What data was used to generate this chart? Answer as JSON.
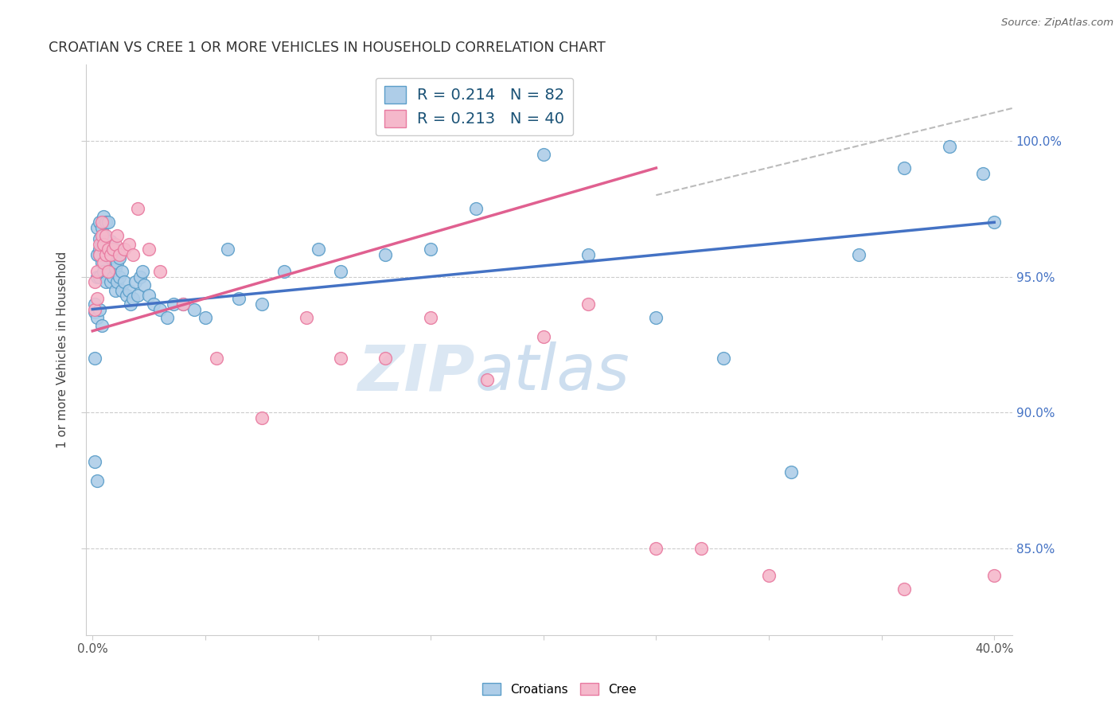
{
  "title": "CROATIAN VS CREE 1 OR MORE VEHICLES IN HOUSEHOLD CORRELATION CHART",
  "source": "Source: ZipAtlas.com",
  "ylabel": "1 or more Vehicles in Household",
  "color_croatian_face": "#aecde8",
  "color_croatian_edge": "#5b9ec9",
  "color_cree_face": "#f5b8cb",
  "color_cree_edge": "#e87aa0",
  "color_line_blue": "#4472c4",
  "color_line_pink": "#e06090",
  "color_dash": "#bbbbbb",
  "color_grid": "#cccccc",
  "color_ytick": "#4472c4",
  "xlim": [
    -0.003,
    0.408
  ],
  "ylim": [
    0.818,
    1.028
  ],
  "y_tick_positions": [
    0.85,
    0.9,
    0.95,
    1.0
  ],
  "y_tick_labels": [
    "85.0%",
    "90.0%",
    "95.0%",
    "100.0%"
  ],
  "x_tick_positions": [
    0.0,
    0.05,
    0.1,
    0.15,
    0.2,
    0.25,
    0.3,
    0.35,
    0.4
  ],
  "x_tick_labels": [
    "0.0%",
    "",
    "",
    "",
    "",
    "",
    "",
    "",
    "40.0%"
  ],
  "legend_line1": "R = 0.214   N = 82",
  "legend_line2": "R = 0.213   N = 40",
  "legend_label1": "Croatians",
  "legend_label2": "Cree",
  "blue_line_x0": 0.0,
  "blue_line_y0": 0.938,
  "blue_line_x1": 0.4,
  "blue_line_y1": 0.97,
  "pink_line_x0": 0.0,
  "pink_line_y0": 0.93,
  "pink_line_x1": 0.25,
  "pink_line_y1": 0.99,
  "dash_line_x0": 0.25,
  "dash_line_y0": 0.98,
  "dash_line_x1": 0.408,
  "dash_line_y1": 1.012,
  "croatian_x": [
    0.001,
    0.001,
    0.002,
    0.002,
    0.002,
    0.003,
    0.003,
    0.003,
    0.003,
    0.003,
    0.004,
    0.004,
    0.004,
    0.005,
    0.005,
    0.005,
    0.005,
    0.006,
    0.006,
    0.006,
    0.006,
    0.007,
    0.007,
    0.007,
    0.007,
    0.008,
    0.008,
    0.008,
    0.009,
    0.009,
    0.01,
    0.01,
    0.01,
    0.011,
    0.011,
    0.012,
    0.012,
    0.013,
    0.013,
    0.014,
    0.015,
    0.016,
    0.017,
    0.018,
    0.019,
    0.02,
    0.021,
    0.022,
    0.023,
    0.025,
    0.027,
    0.03,
    0.033,
    0.036,
    0.04,
    0.045,
    0.05,
    0.06,
    0.065,
    0.075,
    0.085,
    0.1,
    0.11,
    0.13,
    0.15,
    0.17,
    0.2,
    0.22,
    0.25,
    0.28,
    0.31,
    0.34,
    0.36,
    0.38,
    0.395,
    0.4,
    0.002,
    0.003,
    0.004,
    0.001,
    0.001,
    0.002
  ],
  "croatian_y": [
    0.937,
    0.94,
    0.95,
    0.958,
    0.968,
    0.96,
    0.95,
    0.958,
    0.964,
    0.97,
    0.955,
    0.962,
    0.968,
    0.952,
    0.96,
    0.965,
    0.972,
    0.948,
    0.958,
    0.963,
    0.97,
    0.952,
    0.958,
    0.963,
    0.97,
    0.948,
    0.957,
    0.963,
    0.95,
    0.958,
    0.945,
    0.953,
    0.96,
    0.948,
    0.955,
    0.95,
    0.957,
    0.945,
    0.952,
    0.948,
    0.943,
    0.945,
    0.94,
    0.942,
    0.948,
    0.943,
    0.95,
    0.952,
    0.947,
    0.943,
    0.94,
    0.938,
    0.935,
    0.94,
    0.94,
    0.938,
    0.935,
    0.96,
    0.942,
    0.94,
    0.952,
    0.96,
    0.952,
    0.958,
    0.96,
    0.975,
    0.995,
    0.958,
    0.935,
    0.92,
    0.878,
    0.958,
    0.99,
    0.998,
    0.988,
    0.97,
    0.935,
    0.938,
    0.932,
    0.92,
    0.882,
    0.875
  ],
  "cree_x": [
    0.001,
    0.001,
    0.002,
    0.002,
    0.003,
    0.003,
    0.004,
    0.004,
    0.005,
    0.005,
    0.006,
    0.006,
    0.007,
    0.007,
    0.008,
    0.009,
    0.01,
    0.011,
    0.012,
    0.014,
    0.016,
    0.018,
    0.02,
    0.025,
    0.03,
    0.04,
    0.055,
    0.075,
    0.095,
    0.11,
    0.13,
    0.15,
    0.175,
    0.2,
    0.22,
    0.25,
    0.27,
    0.3,
    0.36,
    0.4
  ],
  "cree_y": [
    0.938,
    0.948,
    0.942,
    0.952,
    0.958,
    0.962,
    0.965,
    0.97,
    0.955,
    0.962,
    0.958,
    0.965,
    0.952,
    0.96,
    0.958,
    0.96,
    0.962,
    0.965,
    0.958,
    0.96,
    0.962,
    0.958,
    0.975,
    0.96,
    0.952,
    0.94,
    0.92,
    0.898,
    0.935,
    0.92,
    0.92,
    0.935,
    0.912,
    0.928,
    0.94,
    0.85,
    0.85,
    0.84,
    0.835,
    0.84
  ]
}
